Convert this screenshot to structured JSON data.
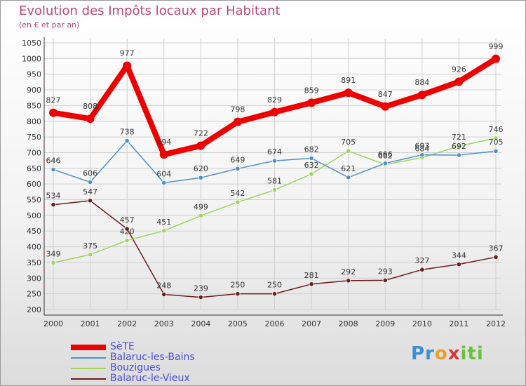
{
  "title": "Evolution des Impôts locaux par Habitant",
  "subtitle": "(en € et par an)",
  "logo_text": "Proxiti",
  "chart_data": {
    "type": "line",
    "title": "Evolution des Impôts locaux par Habitant",
    "subtitle": "(en € et par an)",
    "xlabel": "",
    "ylabel": "",
    "x": [
      "2000",
      "2001",
      "2002",
      "2003",
      "2004",
      "2005",
      "2006",
      "2007",
      "2008",
      "2009",
      "2010",
      "2011",
      "2012"
    ],
    "ylim": [
      200,
      1050
    ],
    "yticks": [
      200,
      250,
      300,
      350,
      400,
      450,
      500,
      550,
      600,
      650,
      700,
      750,
      800,
      850,
      900,
      950,
      1000,
      1050
    ],
    "grid": true,
    "legend": "bottom-left",
    "series": [
      {
        "name": "SèTE",
        "color": "#ee0000",
        "values": [
          827,
          808,
          977,
          694,
          722,
          798,
          829,
          859,
          891,
          847,
          884,
          926,
          999
        ]
      },
      {
        "name": "Balaruc-les-Bains",
        "color": "#4f8fc8",
        "values": [
          646,
          606,
          738,
          604,
          620,
          649,
          674,
          682,
          621,
          666,
          693,
          692,
          705
        ]
      },
      {
        "name": "Bouzigues",
        "color": "#9ed45a",
        "values": [
          349,
          375,
          420,
          451,
          499,
          542,
          581,
          632,
          705,
          662,
          684,
          721,
          746
        ]
      },
      {
        "name": "Balaruc-le-Vieux",
        "color": "#6b1c1c",
        "values": [
          534,
          547,
          457,
          248,
          239,
          250,
          250,
          281,
          292,
          293,
          327,
          344,
          367
        ]
      }
    ]
  }
}
